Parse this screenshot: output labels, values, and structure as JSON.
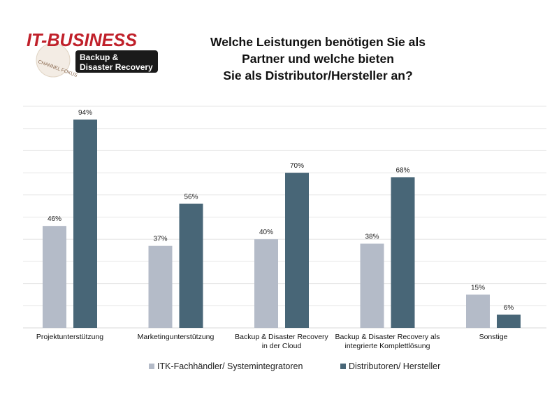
{
  "logo": {
    "brand": "IT-BUSINESS",
    "ring": "CHANNEL FOKUS",
    "line1": "Backup &",
    "line2": "Disaster Recovery"
  },
  "colors": {
    "series1": "#b4bbc8",
    "series2": "#486677",
    "grid": "#e6e6e6",
    "brand_red": "#c0202a"
  },
  "chart_data": {
    "type": "bar",
    "title": [
      "Welche Leistungen benötigen Sie als",
      "Partner und welche bieten",
      "Sie als Distributor/Hersteller an?"
    ],
    "categories": [
      [
        "Projektunterstützung"
      ],
      [
        "Marketingunterstützung"
      ],
      [
        "Backup & Disaster Recovery",
        "in der Cloud"
      ],
      [
        "Backup & Disaster Recovery als",
        "integrierte Komplettlösung"
      ],
      [
        "Sonstige"
      ]
    ],
    "series": [
      {
        "name": "ITK-Fachhändler/ Systemintegratoren",
        "values": [
          46,
          37,
          40,
          38,
          15
        ],
        "labels": [
          "46%",
          "37%",
          "40%",
          "38%",
          "15%"
        ]
      },
      {
        "name": "Distributoren/ Hersteller",
        "values": [
          94,
          56,
          70,
          68,
          6
        ],
        "labels": [
          "94%",
          "56%",
          "70%",
          "68%",
          "6%"
        ]
      }
    ],
    "ylim": [
      0,
      100
    ],
    "grid": true,
    "gridStep": 10,
    "legend": "bottom"
  }
}
